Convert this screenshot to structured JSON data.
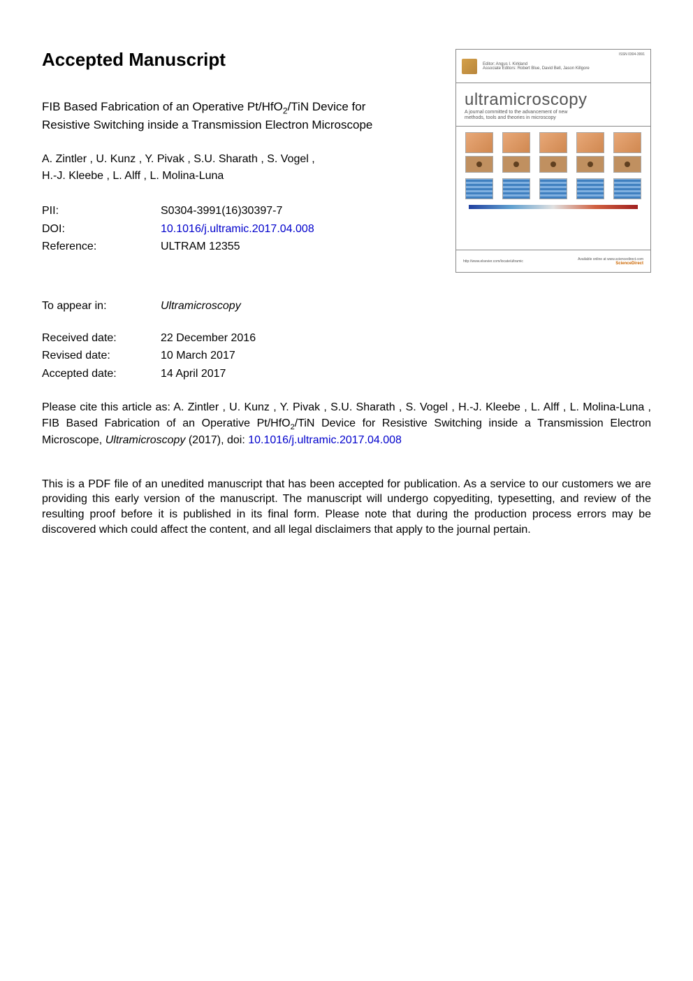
{
  "heading": "Accepted Manuscript",
  "title_line1": "FIB Based Fabrication of an Operative Pt/HfO",
  "title_sub": "2",
  "title_line1_cont": "/TiN Device for",
  "title_line2": "Resistive Switching inside a Transmission Electron Microscope",
  "authors_line1": "A. Zintler ,  U. Kunz ,  Y. Pivak ,  S.U. Sharath ,  S. Vogel ,",
  "authors_line2": "H.-J. Kleebe ,  L. Alff ,  L. Molina-Luna",
  "metadata": {
    "pii_label": "PII:",
    "pii_value": "S0304-3991(16)30397-7",
    "doi_label": "DOI:",
    "doi_value": "10.1016/j.ultramic.2017.04.008",
    "ref_label": "Reference:",
    "ref_value": "ULTRAM 12355",
    "appear_label": "To appear in:",
    "appear_value": "Ultramicroscopy",
    "received_label": "Received date:",
    "received_value": "22 December 2016",
    "revised_label": "Revised date:",
    "revised_value": "10 March 2017",
    "accepted_label": "Accepted date:",
    "accepted_value": "14 April 2017"
  },
  "citation": {
    "prefix": "Please cite this article as:  A. Zintler ,  U. Kunz ,  Y. Pivak ,  S.U. Sharath ,  S. Vogel ,  H.-J. Kleebe ,  L. Alff ,   L. Molina-Luna ,  FIB  Based  Fabrication  of  an  Operative  Pt/HfO",
    "sub": "2",
    "middle": "/TiN  Device  for  Resistive  Switching  inside  a  Transmission  Electron  Microscope, ",
    "journal": "Ultramicroscopy",
    "suffix": " (2017),  doi: ",
    "doi_link": "10.1016/j.ultramic.2017.04.008"
  },
  "disclaimer": "This is a PDF file of an unedited manuscript that has been accepted for publication. As a service to our customers we are providing this early version of the manuscript. The manuscript will undergo copyediting, typesetting, and review of the resulting proof before it is published in its final form. Please note that during the production process errors may be discovered which could affect the content, and all legal disclaimers that apply to the journal pertain.",
  "cover": {
    "issn": "ISSN 0304-3991",
    "editor": "Editor: Angus I. Kirkland",
    "assoc_editors": "Associate Editors: Robert Blue, David Bell, Jason Killgore",
    "journal_name": "ultramicroscopy",
    "tagline1": "A journal committed to the advancement of new",
    "tagline2": "methods, tools and theories in microscopy",
    "footer_url": "http://www.elsevier.com/locate/ultramic",
    "footer_avail": "Available online at www.sciencedirect.com",
    "sciencedirect": "ScienceDirect"
  },
  "colors": {
    "link": "#0000cc",
    "text": "#000000"
  }
}
